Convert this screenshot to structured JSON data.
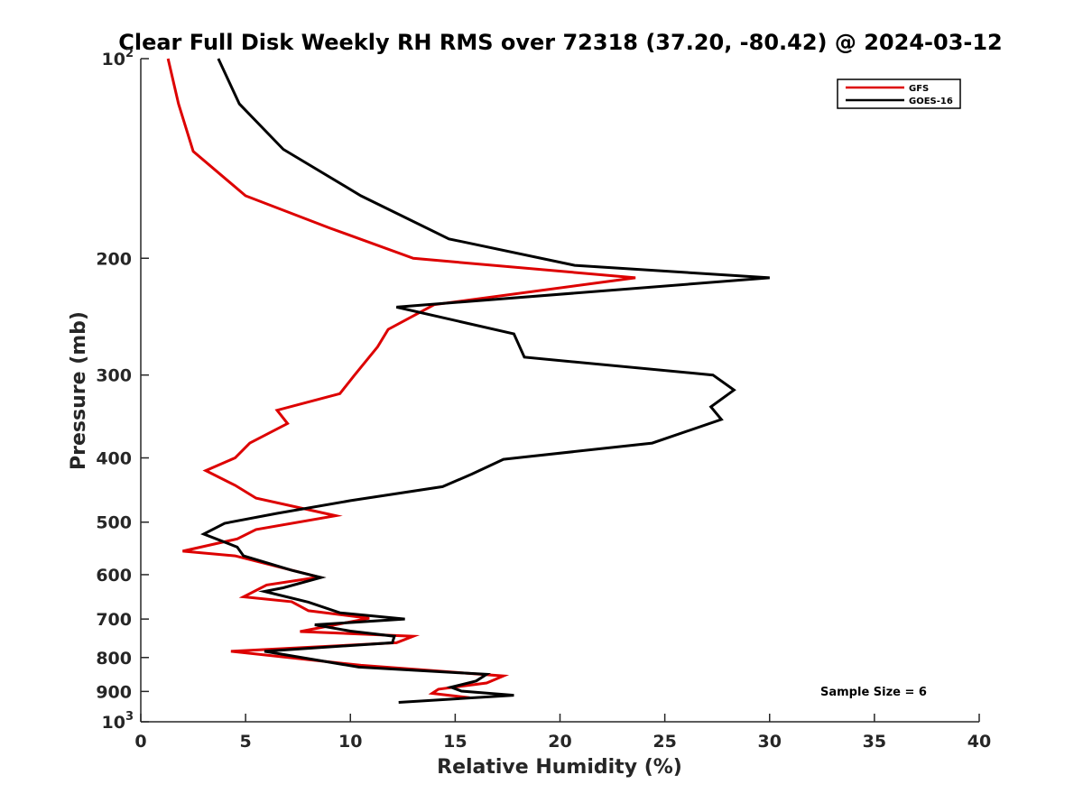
{
  "chart_data": {
    "type": "line",
    "title": "Clear Full Disk Weekly RH RMS over 72318 (37.20, -80.42) @ 2024-03-12",
    "xlabel": "Relative Humidity (%)",
    "ylabel": "Pressure (mb)",
    "xlim": [
      0,
      40
    ],
    "ylim": [
      100,
      1000
    ],
    "y_scale": "log",
    "y_reversed": true,
    "x_ticks": [
      "0",
      "5",
      "10",
      "15",
      "20",
      "25",
      "30",
      "35",
      "40"
    ],
    "y_ticks": [
      {
        "value": 100,
        "base": "10",
        "exp": "2"
      },
      {
        "value": 200,
        "label": "200"
      },
      {
        "value": 300,
        "label": "300"
      },
      {
        "value": 400,
        "label": "400"
      },
      {
        "value": 500,
        "label": "500"
      },
      {
        "value": 600,
        "label": "600"
      },
      {
        "value": 700,
        "label": "700"
      },
      {
        "value": 800,
        "label": "800"
      },
      {
        "value": 900,
        "label": "900"
      },
      {
        "value": 1000,
        "base": "10",
        "exp": "3"
      }
    ],
    "grid": false,
    "legend_position": "top-right",
    "annotation": "Sample Size = 6",
    "series": [
      {
        "name": "GFS",
        "color": "#dd0000",
        "points": [
          [
            1.3,
            100
          ],
          [
            1.8,
            117
          ],
          [
            2.5,
            138
          ],
          [
            5.0,
            161
          ],
          [
            9,
            180
          ],
          [
            13.0,
            200
          ],
          [
            23.6,
            214
          ],
          [
            14,
            235
          ],
          [
            11.8,
            256
          ],
          [
            11.3,
            272
          ],
          [
            10.2,
            300
          ],
          [
            9.5,
            320
          ],
          [
            6.5,
            339
          ],
          [
            7.0,
            355
          ],
          [
            5.2,
            380
          ],
          [
            4.5,
            400
          ],
          [
            3.1,
            418
          ],
          [
            4.5,
            440
          ],
          [
            5.5,
            460
          ],
          [
            9.3,
            489
          ],
          [
            5.5,
            513
          ],
          [
            4.6,
            530
          ],
          [
            2.0,
            553
          ],
          [
            4.5,
            562
          ],
          [
            8.5,
            605
          ],
          [
            6,
            622
          ],
          [
            4.9,
            648
          ],
          [
            7.2,
            659
          ],
          [
            8.0,
            680
          ],
          [
            10.9,
            698
          ],
          [
            7.6,
            731
          ],
          [
            13.0,
            743
          ],
          [
            12.2,
            760
          ],
          [
            4.3,
            783
          ],
          [
            10.5,
            822
          ],
          [
            17.3,
            853
          ],
          [
            16.5,
            874
          ],
          [
            14.2,
            893
          ],
          [
            13.9,
            906
          ],
          [
            15.7,
            920
          ]
        ]
      },
      {
        "name": "GOES-16",
        "color": "#000000",
        "points": [
          [
            3.7,
            100
          ],
          [
            4.7,
            117
          ],
          [
            6.8,
            137
          ],
          [
            10.5,
            161
          ],
          [
            14.7,
            187
          ],
          [
            20.7,
            205
          ],
          [
            30.0,
            214
          ],
          [
            12.2,
            237
          ],
          [
            17.8,
            260
          ],
          [
            18.3,
            282
          ],
          [
            27.3,
            300
          ],
          [
            28.3,
            316
          ],
          [
            27.2,
            335
          ],
          [
            27.7,
            350
          ],
          [
            24.4,
            380
          ],
          [
            17.3,
            402
          ],
          [
            15.8,
            423
          ],
          [
            14.4,
            442
          ],
          [
            10,
            464
          ],
          [
            6.5,
            485
          ],
          [
            4.0,
            502
          ],
          [
            3.0,
            521
          ],
          [
            4.6,
            545
          ],
          [
            4.9,
            562
          ],
          [
            7.2,
            591
          ],
          [
            8.6,
            606
          ],
          [
            6.8,
            628
          ],
          [
            5.9,
            636
          ],
          [
            8.0,
            660
          ],
          [
            9.5,
            685
          ],
          [
            12.6,
            700
          ],
          [
            8.3,
            714
          ],
          [
            10.0,
            730
          ],
          [
            12.1,
            743
          ],
          [
            12.0,
            760
          ],
          [
            5.9,
            783
          ],
          [
            10.4,
            827
          ],
          [
            16.5,
            848
          ],
          [
            16.0,
            868
          ],
          [
            14.8,
            887
          ],
          [
            15.3,
            899
          ],
          [
            17.8,
            912
          ],
          [
            12.3,
            935
          ]
        ]
      }
    ]
  }
}
